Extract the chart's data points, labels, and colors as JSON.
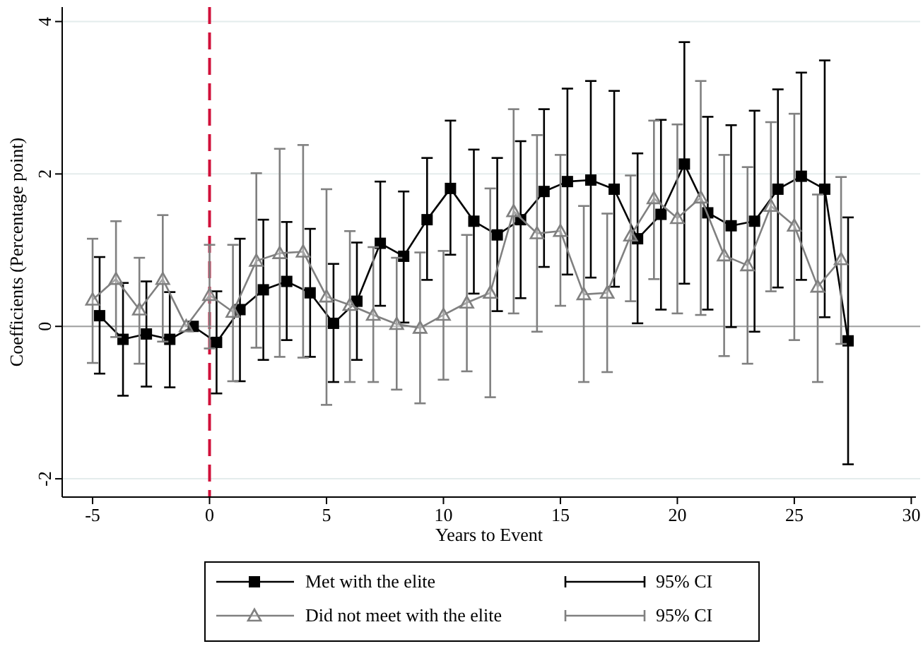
{
  "chart_data": {
    "type": "line",
    "xlabel": "Years to Event",
    "ylabel": "Coefficients (Percentage point)",
    "xlim": [
      -6.3,
      30.2
    ],
    "xticks": [
      -5,
      0,
      5,
      10,
      15,
      20,
      25,
      30
    ],
    "ylim": [
      -2.24,
      4.19
    ],
    "yticks": [
      -2,
      0,
      2,
      4
    ],
    "grid": "y",
    "legend": "bottom",
    "ref_lines": [
      {
        "axis": "x",
        "value": 0,
        "color": "#d0103a",
        "line_style": "dashed"
      },
      {
        "axis": "y",
        "value": 0,
        "color": "#a0a0a0",
        "line_style": "solid"
      }
    ],
    "annotations": [
      "95% CI",
      "95% CI"
    ],
    "series": [
      {
        "name": "Met with the elite",
        "color": "#000000",
        "marker": "square",
        "x": [
          -4.7,
          -3.7,
          -2.7,
          -1.7,
          -0.7,
          0.3,
          1.3,
          2.3,
          3.3,
          4.3,
          5.3,
          6.3,
          7.3,
          8.3,
          9.3,
          10.3,
          11.3,
          12.3,
          13.3,
          14.3,
          15.3,
          16.3,
          17.3,
          18.3,
          19.3,
          20.3,
          21.3,
          22.3,
          23.3,
          24.3,
          25.3,
          26.3,
          27.3
        ],
        "values": [
          0.14,
          -0.17,
          -0.1,
          -0.17,
          0,
          -0.21,
          0.22,
          0.48,
          0.59,
          0.44,
          0.04,
          0.33,
          1.09,
          0.92,
          1.4,
          1.81,
          1.38,
          1.2,
          1.4,
          1.77,
          1.9,
          1.92,
          1.8,
          1.15,
          1.47,
          2.13,
          1.49,
          1.32,
          1.38,
          1.8,
          1.97,
          1.8,
          -0.19
        ],
        "errors": [
          [
            -0.62,
            0.91
          ],
          [
            -0.91,
            0.57
          ],
          [
            -0.79,
            0.59
          ],
          [
            -0.8,
            0.45
          ],
          null,
          [
            -0.88,
            0.46
          ],
          [
            -0.72,
            1.15
          ],
          [
            -0.44,
            1.4
          ],
          [
            -0.18,
            1.37
          ],
          [
            -0.4,
            1.28
          ],
          [
            -0.73,
            0.82
          ],
          [
            -0.44,
            1.1
          ],
          [
            0.27,
            1.9
          ],
          [
            0.05,
            1.77
          ],
          [
            0.61,
            2.21
          ],
          [
            0.94,
            2.7
          ],
          [
            0.43,
            2.32
          ],
          [
            0.2,
            2.21
          ],
          [
            0.37,
            2.43
          ],
          [
            0.78,
            2.85
          ],
          [
            0.68,
            3.12
          ],
          [
            0.64,
            3.22
          ],
          [
            0.52,
            3.09
          ],
          [
            0.04,
            2.27
          ],
          [
            0.22,
            2.71
          ],
          [
            0.56,
            3.73
          ],
          [
            0.22,
            2.75
          ],
          [
            -0.01,
            2.64
          ],
          [
            -0.07,
            2.83
          ],
          [
            0.51,
            3.11
          ],
          [
            0.61,
            3.33
          ],
          [
            0.12,
            3.49
          ],
          [
            -1.81,
            1.43
          ]
        ]
      },
      {
        "name": "Did not meet with the elite",
        "color": "#808080",
        "marker": "triangle",
        "x": [
          -5,
          -4,
          -3,
          -2,
          -1,
          0,
          1,
          2,
          3,
          4,
          5,
          6,
          7,
          8,
          9,
          10,
          11,
          12,
          13,
          14,
          15,
          16,
          17,
          18,
          19,
          20,
          21,
          22,
          23,
          24,
          25,
          26,
          27
        ],
        "values": [
          0.35,
          0.62,
          0.22,
          0.62,
          0,
          0.41,
          0.19,
          0.86,
          0.96,
          0.98,
          0.39,
          0.28,
          0.15,
          0.03,
          -0.02,
          0.15,
          0.31,
          0.44,
          1.51,
          1.22,
          1.25,
          0.42,
          0.44,
          1.19,
          1.68,
          1.42,
          1.69,
          0.93,
          0.8,
          1.58,
          1.32,
          0.52,
          0.88
        ],
        "errors": [
          [
            -0.48,
            1.15
          ],
          [
            -0.14,
            1.38
          ],
          [
            -0.49,
            0.9
          ],
          [
            -0.2,
            1.46
          ],
          null,
          [
            -0.29,
            1.07
          ],
          [
            -0.72,
            1.07
          ],
          [
            -0.28,
            2.01
          ],
          [
            -0.4,
            2.33
          ],
          [
            -0.41,
            2.38
          ],
          [
            -1.03,
            1.8
          ],
          [
            -0.73,
            1.25
          ],
          [
            -0.73,
            1.04
          ],
          [
            -0.83,
            0.9
          ],
          [
            -1.01,
            0.97
          ],
          [
            -0.7,
            0.99
          ],
          [
            -0.59,
            1.2
          ],
          [
            -0.93,
            1.81
          ],
          [
            0.17,
            2.85
          ],
          [
            -0.07,
            2.51
          ],
          [
            0.27,
            2.25
          ],
          [
            -0.73,
            1.58
          ],
          [
            -0.6,
            1.48
          ],
          [
            0.33,
            1.98
          ],
          [
            0.62,
            2.7
          ],
          [
            0.17,
            2.65
          ],
          [
            0.15,
            3.22
          ],
          [
            -0.39,
            2.25
          ],
          [
            -0.49,
            2.09
          ],
          [
            0.46,
            2.68
          ],
          [
            -0.18,
            2.79
          ],
          [
            -0.73,
            1.73
          ],
          [
            -0.23,
            1.96
          ]
        ]
      }
    ]
  }
}
